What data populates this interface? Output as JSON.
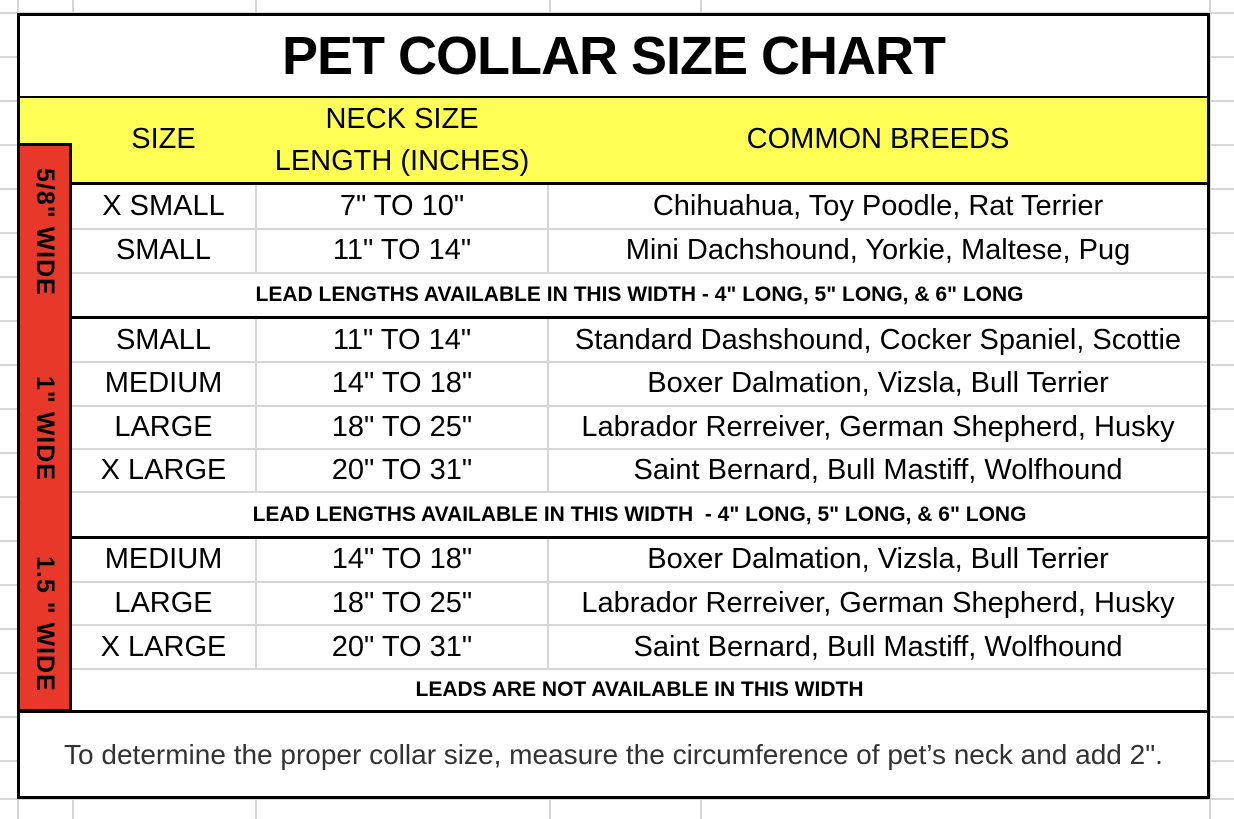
{
  "title": "PET COLLAR SIZE CHART",
  "colors": {
    "header_fill": "#FEFE55",
    "band_fill": "#E8382A",
    "gridline": "#D6D6D6",
    "border": "#000000",
    "note_text": "#333333"
  },
  "header": {
    "size": "SIZE",
    "neck_line1": "NECK SIZE",
    "neck_line2": "LENGTH (INCHES)",
    "breeds": "COMMON BREEDS"
  },
  "sections": [
    {
      "width_label": "5/8\" WIDE",
      "rows": [
        {
          "size": "X SMALL",
          "neck": "7\" TO 10\"",
          "breeds": "Chihuahua, Toy Poodle, Rat Terrier"
        },
        {
          "size": "SMALL",
          "neck": "11\" TO 14\"",
          "breeds": "Mini Dachshound, Yorkie, Maltese, Pug"
        }
      ],
      "footer": "LEAD LENGTHS AVAILABLE IN THIS WIDTH - 4\" LONG, 5\" LONG, & 6\" LONG"
    },
    {
      "width_label": "1\" WIDE",
      "rows": [
        {
          "size": "SMALL",
          "neck": "11\" TO 14\"",
          "breeds": "Standard Dashshound, Cocker Spaniel, Scottie"
        },
        {
          "size": "MEDIUM",
          "neck": "14\" TO 18\"",
          "breeds": "Boxer Dalmation, Vizsla, Bull Terrier"
        },
        {
          "size": "LARGE",
          "neck": "18\" TO 25\"",
          "breeds": "Labrador Rerreiver, German Shepherd, Husky"
        },
        {
          "size": "X LARGE",
          "neck": "20\" TO 31\"",
          "breeds": "Saint Bernard, Bull Mastiff, Wolfhound"
        }
      ],
      "footer": "LEAD LENGTHS AVAILABLE IN THIS WIDTH  - 4\" LONG, 5\" LONG, & 6\" LONG"
    },
    {
      "width_label": "1.5 \" WIDE",
      "rows": [
        {
          "size": "MEDIUM",
          "neck": "14\" TO 18\"",
          "breeds": "Boxer Dalmation, Vizsla, Bull Terrier"
        },
        {
          "size": "LARGE",
          "neck": "18\" TO 25\"",
          "breeds": "Labrador Rerreiver, German Shepherd, Husky"
        },
        {
          "size": "X LARGE",
          "neck": "20\" TO 31\"",
          "breeds": "Saint Bernard, Bull Mastiff, Wolfhound"
        }
      ],
      "footer": "LEADS ARE NOT AVAILABLE IN THIS WIDTH"
    }
  ],
  "note": "To determine the proper collar size, measure the circumference of pet’s neck and add 2\"."
}
